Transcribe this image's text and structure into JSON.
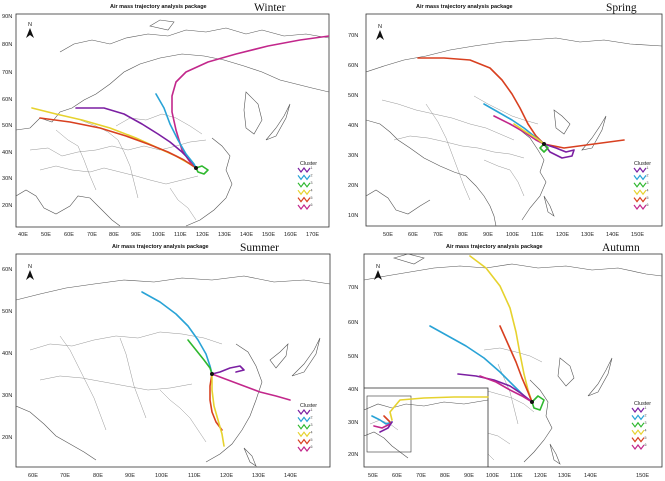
{
  "package_title": "Air mass trajectory analysis package",
  "legend_title": "Cluster",
  "north_label": "N",
  "cluster_colors": {
    "1": "#7b1fa2",
    "2": "#29a3d6",
    "3": "#2eb82e",
    "4": "#e6d22e",
    "5": "#d84020",
    "6": "#c2278b"
  },
  "source_point_color": "#111111",
  "panels": [
    {
      "season": "Winter",
      "lat_labels": [
        "90N",
        "80N",
        "70N",
        "60N",
        "50N",
        "40N",
        "30N",
        "20N"
      ],
      "lon_labels": [
        "40E",
        "50E",
        "60E",
        "70E",
        "80E",
        "90E",
        "100E",
        "110E",
        "120E",
        "130E",
        "140E",
        "150E",
        "160E",
        "170E"
      ],
      "clusters": [
        "1",
        "2",
        "3",
        "4",
        "5",
        "6"
      ]
    },
    {
      "season": "Spring",
      "lat_labels": [
        "70N",
        "60N",
        "50N",
        "40N",
        "30N",
        "20N",
        "10N"
      ],
      "lon_labels": [
        "50E",
        "60E",
        "70E",
        "80E",
        "90E",
        "100E",
        "110E",
        "120E",
        "130E",
        "140E",
        "150E"
      ],
      "clusters": [
        "1",
        "2",
        "3",
        "4",
        "5",
        "6"
      ]
    },
    {
      "season": "Summer",
      "lat_labels": [
        "60N",
        "50N",
        "40N",
        "30N",
        "20N"
      ],
      "lon_labels": [
        "60E",
        "70E",
        "80E",
        "90E",
        "100E",
        "110E",
        "120E",
        "130E",
        "140E"
      ],
      "clusters": [
        "1",
        "2",
        "3",
        "4",
        "5",
        "6"
      ]
    },
    {
      "season": "Autumn",
      "lat_labels": [
        "70N",
        "60N",
        "50N",
        "40N",
        "30N",
        "20N"
      ],
      "lon_labels": [
        "50E",
        "60E",
        "70E",
        "80E",
        "90E",
        "100E",
        "110E",
        "120E",
        "130E",
        "140E",
        "150E"
      ],
      "clusters": [
        "1",
        "2",
        "3",
        "4",
        "5",
        "6"
      ]
    }
  ]
}
